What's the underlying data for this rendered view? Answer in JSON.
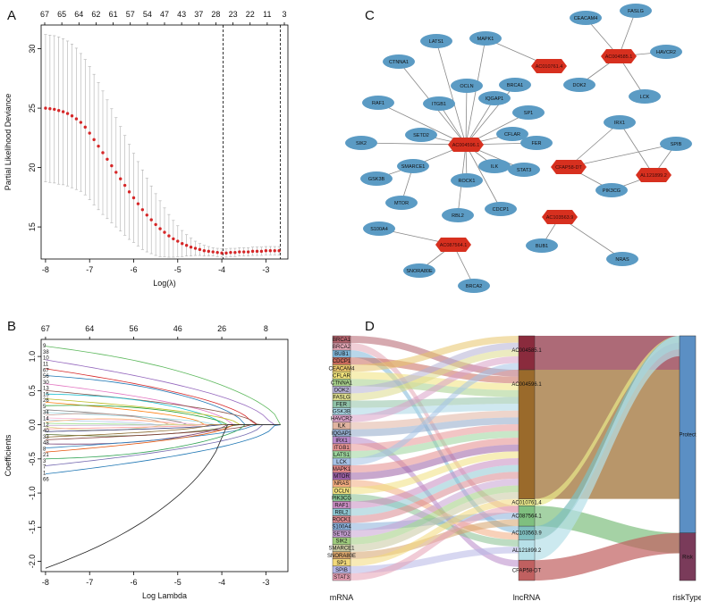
{
  "panels": {
    "A": "A",
    "B": "B",
    "C": "C",
    "D": "D"
  },
  "chart_data": [
    {
      "type": "scatter",
      "panel": "A",
      "xlabel": "Log(λ)",
      "ylabel": "Partial Likelihood Deviance",
      "xlim": [
        -8.1,
        -2.5
      ],
      "ylim": [
        12.3,
        32
      ],
      "x_ticks": [
        "-8",
        "-7",
        "-6",
        "-5",
        "-4",
        "-3"
      ],
      "y_ticks": [
        "15",
        "20",
        "25",
        "30"
      ],
      "top_axis_ticks": [
        "67",
        "65",
        "64",
        "62",
        "61",
        "57",
        "54",
        "47",
        "43",
        "37",
        "28",
        "23",
        "22",
        "11",
        "3"
      ],
      "top_axis_x": [
        -7.95,
        -7.5,
        -7.1,
        -6.65,
        -6.2,
        -5.8,
        -5.35,
        -4.9,
        -4.5,
        -4.1,
        -3.7,
        -3.95,
        -3.55,
        -3.15,
        -2.7
      ],
      "vlines": [
        -3.97,
        -2.67
      ],
      "points": {
        "x": [
          -8.0,
          -7.9,
          -7.8,
          -7.7,
          -7.6,
          -7.5,
          -7.4,
          -7.3,
          -7.2,
          -7.1,
          -7.0,
          -6.9,
          -6.8,
          -6.7,
          -6.6,
          -6.5,
          -6.4,
          -6.3,
          -6.2,
          -6.1,
          -6.0,
          -5.9,
          -5.8,
          -5.7,
          -5.6,
          -5.5,
          -5.4,
          -5.3,
          -5.2,
          -5.1,
          -5.0,
          -4.9,
          -4.8,
          -4.7,
          -4.6,
          -4.5,
          -4.4,
          -4.3,
          -4.2,
          -4.1,
          -4.0,
          -3.9,
          -3.8,
          -3.7,
          -3.6,
          -3.5,
          -3.4,
          -3.3,
          -3.2,
          -3.1,
          -3.0,
          -2.9,
          -2.8,
          -2.7
        ],
        "y": [
          25.0,
          24.95,
          24.9,
          24.8,
          24.7,
          24.55,
          24.35,
          24.1,
          23.8,
          23.4,
          22.9,
          22.35,
          21.8,
          21.25,
          20.7,
          20.15,
          19.6,
          19.05,
          18.5,
          17.95,
          17.45,
          16.95,
          16.45,
          16.0,
          15.6,
          15.2,
          14.85,
          14.55,
          14.25,
          14.0,
          13.8,
          13.6,
          13.45,
          13.3,
          13.2,
          13.1,
          13.0,
          12.95,
          12.9,
          12.85,
          12.8,
          12.8,
          12.85,
          12.85,
          12.9,
          12.9,
          12.9,
          12.95,
          12.95,
          12.95,
          13.0,
          13.0,
          13.0,
          13.0
        ],
        "upper": [
          31.2,
          31.15,
          31.1,
          31.0,
          30.85,
          30.65,
          30.4,
          30.05,
          29.6,
          29.1,
          28.5,
          27.85,
          27.15,
          26.45,
          25.7,
          24.95,
          24.2,
          23.45,
          22.7,
          21.95,
          21.2,
          20.5,
          19.8,
          19.1,
          18.45,
          17.8,
          17.2,
          16.6,
          16.05,
          15.55,
          15.1,
          14.7,
          14.35,
          14.05,
          13.8,
          13.6,
          13.45,
          13.35,
          13.25,
          13.2,
          13.15,
          13.15,
          13.2,
          13.2,
          13.25,
          13.25,
          13.25,
          13.3,
          13.3,
          13.3,
          13.35,
          13.35,
          13.35,
          13.35
        ],
        "lower": [
          18.8,
          18.75,
          18.7,
          18.6,
          18.55,
          18.45,
          18.3,
          18.15,
          18.0,
          17.7,
          17.3,
          16.85,
          16.45,
          16.05,
          15.7,
          15.35,
          15.0,
          14.65,
          14.3,
          13.95,
          13.7,
          13.4,
          13.1,
          12.9,
          12.75,
          12.6,
          12.5,
          12.5,
          12.45,
          12.45,
          12.5,
          12.5,
          12.55,
          12.55,
          12.6,
          12.6,
          12.55,
          12.55,
          12.55,
          12.5,
          12.45,
          12.45,
          12.5,
          12.5,
          12.55,
          12.55,
          12.55,
          12.6,
          12.6,
          12.6,
          12.65,
          12.65,
          12.65,
          12.65
        ]
      },
      "colors": {
        "points": "#d62728",
        "errorbar": "#b0b0b0"
      }
    },
    {
      "type": "line",
      "panel": "B",
      "xlabel": "Log Lambda",
      "ylabel": "Coefficients",
      "xlim": [
        -8.1,
        -2.5
      ],
      "ylim": [
        -2.15,
        1.25
      ],
      "x_ticks": [
        "-8",
        "-7",
        "-6",
        "-5",
        "-4",
        "-3"
      ],
      "y_ticks": [
        "-2.0",
        "-1.5",
        "-1.0",
        "-0.5",
        "0.0",
        "0.5",
        "1.0"
      ],
      "top_axis_ticks": [
        "67",
        "64",
        "56",
        "46",
        "26",
        "8"
      ],
      "top_axis_x": [
        -8.0,
        -7.0,
        -6.0,
        -5.0,
        -4.0,
        -3.0
      ],
      "start_values": [
        1.15,
        0.95,
        0.82,
        0.72,
        0.6,
        0.5,
        0.45,
        0.38,
        0.33,
        0.28,
        0.22,
        0.18,
        0.14,
        0.1,
        0.07,
        0.04,
        0.02,
        -0.01,
        -0.03,
        -0.06,
        -0.1,
        -0.14,
        -0.18,
        -0.22,
        -0.28,
        -0.34,
        -0.4,
        -0.5,
        -0.6,
        -0.72,
        -2.1
      ],
      "end_x": [
        -2.67,
        -2.9,
        -3.3,
        -3.5,
        -3.8,
        -3.2,
        -4.0,
        -3.6,
        -4.4,
        -3.9,
        -4.8,
        -4.2,
        -5.2,
        -4.6,
        -5.5,
        -5.0,
        -5.8,
        -4.9,
        -5.3,
        -4.5,
        -4.1,
        -3.7,
        -4.3,
        -3.4,
        -3.9,
        -3.3,
        -3.8,
        -3.5,
        -3.1,
        -2.8,
        -3.95
      ],
      "line_colors": [
        "#5cb85c",
        "#9467bd",
        "#d62728",
        "#1f77b4",
        "#e377c2",
        "#8c564b",
        "#17becf",
        "#bcbd22",
        "#ff7f0e",
        "#2ca02c",
        "#7f7f7f",
        "#9edae5",
        "#c49c94",
        "#f7b6d2",
        "#aec7e8",
        "#ffbb78",
        "#98df8a",
        "#c5b0d5",
        "#dbdb8d",
        "#ff9896",
        "#393b79",
        "#637939",
        "#8c6d31",
        "#843c39",
        "#7b4173",
        "#3182bd",
        "#e6550d",
        "#31a354",
        "#756bb1",
        "#1f77b4",
        "#222222"
      ],
      "left_labels": [
        "9",
        "38",
        "10",
        "11",
        "67",
        "56",
        "30",
        "13",
        "15",
        "26",
        "5",
        "34",
        "14",
        "12",
        "40",
        "33",
        "48",
        "8",
        "21",
        "3",
        "7",
        "1",
        "66"
      ]
    },
    {
      "type": "network",
      "panel": "C",
      "lncRNA_nodes": [
        "AC010761.4",
        "AC004585.1",
        "AC004596.1",
        "CFAP58-DT",
        "AL121899.2",
        "AC103563.9",
        "AC087564.1"
      ],
      "mRNA_nodes": [
        "LATS1",
        "MAPK1",
        "CEACAM4",
        "FASLG",
        "HAVCR2",
        "CTNNA1",
        "DOK2",
        "LCK",
        "OCLN",
        "BRCA1",
        "ITGB1",
        "IQGAP1",
        "RAF1",
        "SP1",
        "SETD2",
        "CFLAR",
        "SIK2",
        "FER",
        "IRX1",
        "SPIB",
        "SMARCE1",
        "ILK",
        "STAT3",
        "GSK3B",
        "ROCK1",
        "PIK3CG",
        "MTOR",
        "CDCP1",
        "RBL2",
        "S100A4",
        "BUB1",
        "NRAS",
        "SNORA80E",
        "BRCA2"
      ],
      "colors": {
        "lncRNA": "#d7301f",
        "mRNA": "#5b9bc4",
        "edge": "#888888"
      }
    },
    {
      "type": "sankey",
      "panel": "D",
      "axis_labels": [
        "mRNA",
        "lncRNA",
        "riskType"
      ],
      "mRNA": [
        "BRCA1",
        "BRCA2",
        "BUB1",
        "CDCP1",
        "CEACAM4",
        "CFLAR",
        "CTNNA1",
        "DOK2",
        "FASLG",
        "FER",
        "GSK3B",
        "HAVCR2",
        "ILK",
        "IQGAP1",
        "IRX1",
        "ITGB1",
        "LATS1",
        "LCK",
        "MAPK1",
        "MTOR",
        "NRAS",
        "OCLN",
        "PIK3CG",
        "RAF1",
        "RBL2",
        "ROCK1",
        "S100A4",
        "SETD2",
        "SIK2",
        "SMARCE1",
        "SNORA80E",
        "SP1",
        "SPIB",
        "STAT3"
      ],
      "mRNA_visible": [
        "BRCA1",
        "BRCA2",
        "BUB1",
        "CDCP1",
        "CEACAM4",
        "CFLAR",
        "CTNNA1",
        "DOK2",
        "FASLG",
        "FER",
        "GSK3B",
        "HAVCR2",
        "ILK",
        "IQGAP1",
        "IRX1",
        "ITGB1",
        "LATS1",
        "LCK",
        "MAPK1",
        "MTOR",
        "NRAS",
        "OCLN",
        "PIK3CG",
        "RAF1",
        "RBL2",
        "ROCK1",
        "S100A4",
        "SETD2",
        "SIK2",
        "SMARCE1",
        "SNORA80E",
        "SP1",
        "SPIB",
        "STAT3"
      ],
      "lncRNA": [
        "AC004585.1",
        "AC004596.1",
        "AC010761.4",
        "AC087564.1",
        "AC103563.9",
        "AL121899.2",
        "CFAP58-DT"
      ],
      "lncRNA_weights": [
        5,
        19,
        1,
        3,
        2,
        3,
        3
      ],
      "riskType": [
        "Protect",
        "Risk"
      ],
      "riskType_weights": [
        29,
        7
      ],
      "colors": {
        "lncRNA": [
          "#8a2b3d",
          "#9a6a2b",
          "#e8e88a",
          "#7fbf7f",
          "#7fbfbf",
          "#b7e0e8",
          "#c06060"
        ],
        "risk": [
          "#5b8fc4",
          "#7a3b5a"
        ]
      }
    }
  ]
}
